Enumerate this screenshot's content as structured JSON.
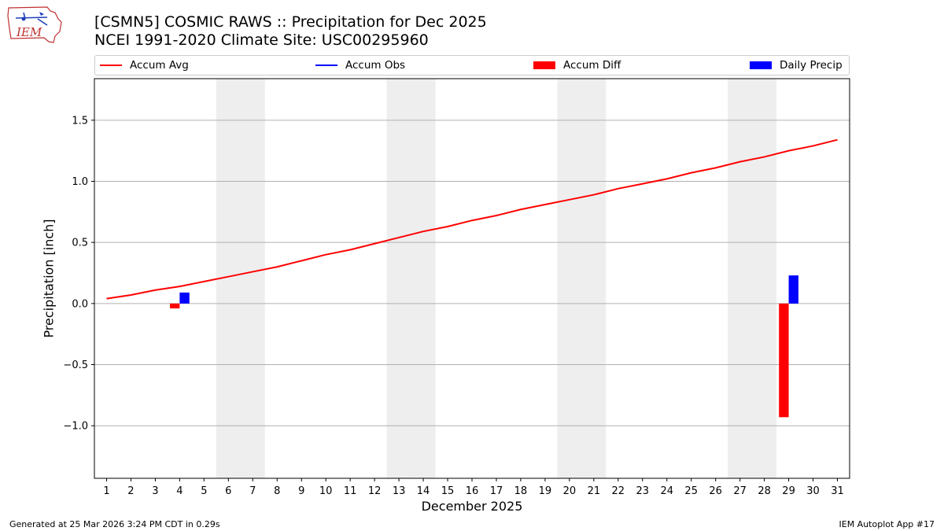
{
  "header": {
    "title_line1": "[CSMN5] COSMIC RAWS :: Precipitation for Dec 2025",
    "title_line2": "NCEI 1991-2020 Climate Site: USC00295960",
    "logo_text": "IEM"
  },
  "legend": [
    {
      "label": "Accum Avg",
      "kind": "line",
      "color": "#ff0000"
    },
    {
      "label": "Accum Obs",
      "kind": "line",
      "color": "#0000ff"
    },
    {
      "label": "Accum Diff",
      "kind": "patch",
      "color": "#ff0000"
    },
    {
      "label": "Daily Precip",
      "kind": "patch",
      "color": "#0000ff"
    }
  ],
  "footer": {
    "left": "Generated at 25 Mar 2026 3:24 PM CDT in 0.29s",
    "right": "IEM Autoplot App #17"
  },
  "chart_data": {
    "type": "bar",
    "xlabel": "December 2025",
    "ylabel": "Precipitation [inch]",
    "x": [
      1,
      2,
      3,
      4,
      5,
      6,
      7,
      8,
      9,
      10,
      11,
      12,
      13,
      14,
      15,
      16,
      17,
      18,
      19,
      20,
      21,
      22,
      23,
      24,
      25,
      26,
      27,
      28,
      29,
      30,
      31
    ],
    "xlim": [
      0.5,
      31.5
    ],
    "ylim": [
      -1.43,
      1.84
    ],
    "yticks": [
      -1.0,
      -0.5,
      0.0,
      0.5,
      1.0,
      1.5
    ],
    "ytick_labels": [
      "−1.0",
      "−0.5",
      "0.0",
      "0.5",
      "1.0",
      "1.5"
    ],
    "grid": "y",
    "weekend_shading": [
      [
        6,
        7
      ],
      [
        13,
        14
      ],
      [
        20,
        21
      ],
      [
        27,
        28
      ]
    ],
    "series": [
      {
        "name": "Accum Avg",
        "type": "line",
        "color": "#ff0000",
        "values": [
          0.04,
          0.07,
          0.11,
          0.14,
          0.18,
          0.22,
          0.26,
          0.3,
          0.35,
          0.4,
          0.44,
          0.49,
          0.54,
          0.59,
          0.63,
          0.68,
          0.72,
          0.77,
          0.81,
          0.85,
          0.89,
          0.94,
          0.98,
          1.02,
          1.07,
          1.11,
          1.16,
          1.2,
          1.25,
          1.29,
          1.34
        ]
      },
      {
        "name": "Accum Diff",
        "type": "bar",
        "color": "#ff0000",
        "points": [
          {
            "x": 4,
            "value": -0.04
          },
          {
            "x": 29,
            "value": -0.93
          }
        ]
      },
      {
        "name": "Daily Precip",
        "type": "bar",
        "color": "#0000ff",
        "points": [
          {
            "x": 4,
            "value": 0.09
          },
          {
            "x": 29,
            "value": 0.23
          }
        ]
      }
    ]
  }
}
